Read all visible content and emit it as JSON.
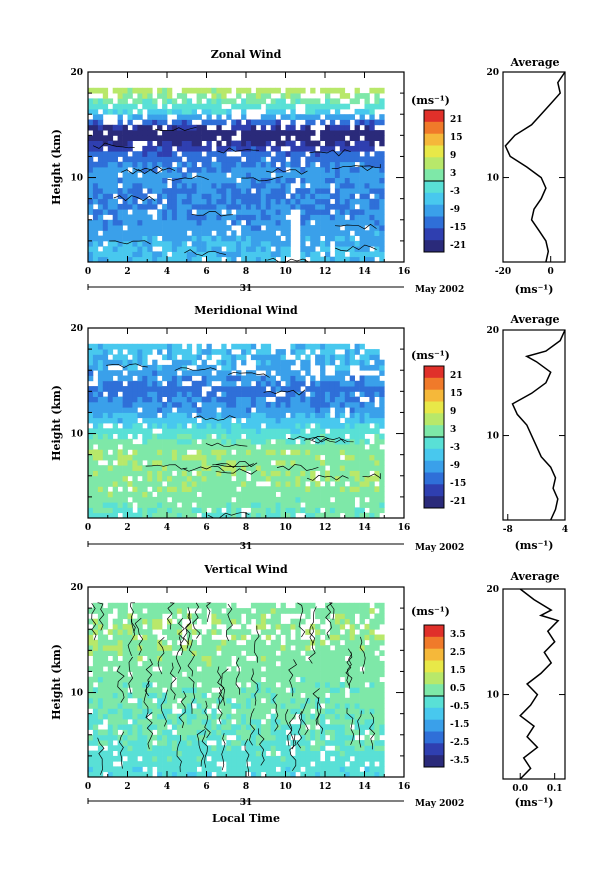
{
  "figure": {
    "xlabel": "Local Time",
    "date_label": "May 2002",
    "day_label": "31"
  },
  "panels": [
    {
      "title": "Zonal Wind",
      "ylabel": "Height (km)",
      "xticks": [
        "0",
        "2",
        "4",
        "6",
        "8",
        "10",
        "12",
        "14",
        "16"
      ],
      "yticks": [
        "10",
        "20"
      ],
      "colorbar": {
        "unit": "(ms⁻¹)",
        "labels": [
          "21",
          "15",
          "9",
          "3",
          "-3",
          "-9",
          "-15",
          "-21"
        ]
      },
      "profile": {
        "title": "Average",
        "xticks": [
          "-20",
          "0"
        ],
        "yticks": [
          "10",
          "20"
        ],
        "unit": "(ms⁻¹)"
      }
    },
    {
      "title": "Meridional Wind",
      "ylabel": "Height (km)",
      "xticks": [
        "0",
        "2",
        "4",
        "6",
        "8",
        "10",
        "12",
        "14",
        "16"
      ],
      "yticks": [
        "10",
        "20"
      ],
      "colorbar": {
        "unit": "(ms⁻¹)",
        "labels": [
          "21",
          "15",
          "9",
          "3",
          "-3",
          "-9",
          "-15",
          "-21"
        ]
      },
      "profile": {
        "title": "Average",
        "xticks": [
          "-8",
          "4"
        ],
        "yticks": [
          "10",
          "20"
        ],
        "unit": "(ms⁻¹)"
      }
    },
    {
      "title": "Vertical Wind",
      "ylabel": "Height (km)",
      "xticks": [
        "0",
        "2",
        "4",
        "6",
        "8",
        "10",
        "12",
        "14",
        "16"
      ],
      "yticks": [
        "10",
        "20"
      ],
      "colorbar": {
        "unit": "(ms⁻¹)",
        "labels": [
          "3.5",
          "2.5",
          "1.5",
          "0.5",
          "-0.5",
          "-1.5",
          "-2.5",
          "-3.5"
        ]
      },
      "profile": {
        "title": "Average",
        "xticks": [
          "0.0",
          "0.1"
        ],
        "yticks": [
          "10",
          "20"
        ],
        "unit": "(ms⁻¹)"
      }
    }
  ],
  "colors": {
    "scale": [
      "#2a2a7a",
      "#2f3fb0",
      "#2f6fd8",
      "#3aa0ea",
      "#48c8ee",
      "#59e0d6",
      "#7ee8a8",
      "#b8e86a",
      "#e8e848",
      "#f5b83a",
      "#f07a2a",
      "#e0302a"
    ]
  },
  "chart_data": [
    {
      "type": "heatmap",
      "title": "Zonal Wind",
      "xlabel": "Local Time",
      "ylabel": "Height (km)",
      "xlim": [
        0,
        16
      ],
      "ylim": [
        2,
        20
      ],
      "zlim": [
        -21,
        21
      ],
      "x": [
        0,
        2,
        4,
        6,
        8,
        10,
        12,
        14.8
      ],
      "y": [
        2,
        4,
        6,
        8,
        10,
        12,
        14,
        16,
        18,
        20
      ],
      "z_profile_by_height": [
        -6,
        -8,
        -10,
        -11,
        -9,
        -13,
        -22,
        -4,
        5,
        null
      ],
      "data_gap": [
        [
          0,
          16,
          19
        ],
        [
          10.0,
          10.6,
          2,
          7
        ]
      ]
    },
    {
      "type": "heatmap",
      "title": "Meridional Wind",
      "xlabel": "Local Time",
      "ylabel": "Height (km)",
      "xlim": [
        0,
        16
      ],
      "ylim": [
        2,
        20
      ],
      "zlim": [
        -21,
        21
      ],
      "x": [
        0,
        2,
        4,
        6,
        8,
        10,
        12,
        14.8
      ],
      "y": [
        2,
        4,
        6,
        8,
        10,
        12,
        14,
        16,
        18,
        20
      ],
      "z_profile_by_height": [
        0,
        2,
        3,
        3,
        -2,
        -9,
        -12,
        -8,
        -6,
        null
      ]
    },
    {
      "type": "heatmap",
      "title": "Vertical Wind",
      "xlabel": "Local Time",
      "ylabel": "Height (km)",
      "xlim": [
        0,
        16
      ],
      "ylim": [
        2,
        20
      ],
      "zlim": [
        -3.5,
        3.5
      ],
      "x": [
        0,
        2,
        4,
        6,
        8,
        10,
        12,
        14.8
      ],
      "y": [
        2,
        4,
        6,
        8,
        10,
        12,
        14,
        16,
        18,
        20
      ],
      "z_profile_by_height": [
        -0.4,
        -0.2,
        0,
        0.1,
        0.2,
        0.3,
        0.4,
        0.5,
        0.3,
        null
      ]
    },
    {
      "type": "line",
      "title": "Average",
      "xlabel": "(ms⁻¹)",
      "ylabel": "",
      "xlim": [
        -20,
        6
      ],
      "ylim": [
        2,
        20
      ],
      "x": [
        -2,
        -1,
        -2,
        -5,
        -8,
        -7,
        -4,
        -2,
        -4,
        -10,
        -17,
        -19,
        -15,
        -8,
        -4,
        0,
        4,
        3,
        6
      ],
      "y": [
        2,
        3,
        4,
        5,
        6,
        7,
        8,
        9,
        10,
        11,
        12,
        13,
        14,
        15,
        16,
        17,
        18,
        19,
        20
      ]
    },
    {
      "type": "line",
      "title": "Average",
      "xlabel": "(ms⁻¹)",
      "ylabel": "",
      "xlim": [
        -9,
        4
      ],
      "ylim": [
        2,
        20
      ],
      "x": [
        1,
        2,
        2.5,
        1.5,
        2,
        1,
        -1,
        -2,
        -3,
        -4,
        -6,
        -7,
        -3,
        0,
        1,
        -2,
        -4,
        0,
        3,
        4
      ],
      "y": [
        2,
        3,
        4,
        5,
        6,
        7,
        8,
        9,
        10,
        11,
        12,
        13,
        14,
        15,
        16,
        17,
        17.5,
        18,
        19,
        20
      ]
    },
    {
      "type": "line",
      "title": "Average",
      "xlabel": "(ms⁻¹)",
      "ylabel": "",
      "xlim": [
        -0.05,
        0.13
      ],
      "ylim": [
        2,
        20
      ],
      "x": [
        0.0,
        0.03,
        0.01,
        0.05,
        0.02,
        0.04,
        0.0,
        0.03,
        0.05,
        0.02,
        0.06,
        0.09,
        0.07,
        0.1,
        0.08,
        0.11,
        0.06,
        0.09,
        0.04,
        0.0
      ],
      "y": [
        2,
        3,
        4,
        5,
        6,
        7,
        8,
        9,
        10,
        11,
        12,
        13,
        14,
        15,
        16,
        17,
        17.5,
        18,
        19,
        20
      ]
    }
  ]
}
